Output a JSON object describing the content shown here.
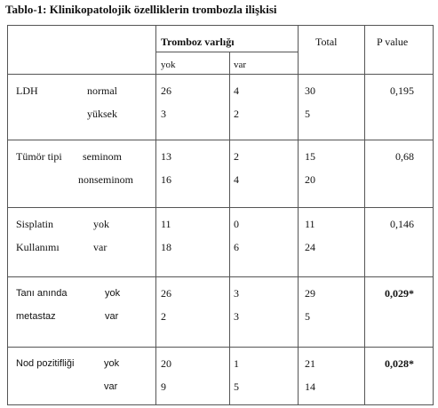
{
  "title": "Tablo-1: Klinikopatolojik özelliklerin trombozla ilişkisi",
  "header": {
    "group": "Tromboz varlığı",
    "yok": "yok",
    "var": "var",
    "total": "Total",
    "p_value": "P value"
  },
  "groups": [
    {
      "rows": [
        {
          "label": "LDH",
          "category": "normal",
          "yok": 26,
          "var": 4,
          "total": 30
        },
        {
          "category": "yüksek",
          "yok": 3,
          "var": 2,
          "total": 5
        }
      ],
      "p_value": "0,195"
    },
    {
      "rows": [
        {
          "label": "Tümör tipi",
          "category": "seminom",
          "yok": 13,
          "var": 2,
          "total": 15
        },
        {
          "category": "nonseminom",
          "yok": 16,
          "var": 4,
          "total": 20
        }
      ],
      "p_value": "0,68"
    },
    {
      "rows": [
        {
          "label": "Sisplatin",
          "category": "yok",
          "yok": 11,
          "var": 0,
          "total": 11
        },
        {
          "label": "Kullanımı",
          "category": "var",
          "yok": 18,
          "var": 6,
          "total": 24
        }
      ],
      "p_value": "0,146"
    },
    {
      "rows": [
        {
          "label": "Tanı anında",
          "category": "yok",
          "yok": 26,
          "var": 3,
          "total": 29
        },
        {
          "label": "metastaz",
          "category": "var",
          "yok": 2,
          "var": 3,
          "total": 5
        }
      ],
      "p_value": "0,029*"
    },
    {
      "rows": [
        {
          "label": "Nod pozitifliği",
          "category": "yok",
          "yok": 20,
          "var": 1,
          "total": 21
        },
        {
          "category": "var",
          "yok": 9,
          "var": 5,
          "total": 14
        }
      ],
      "p_value": "0,028*"
    }
  ]
}
